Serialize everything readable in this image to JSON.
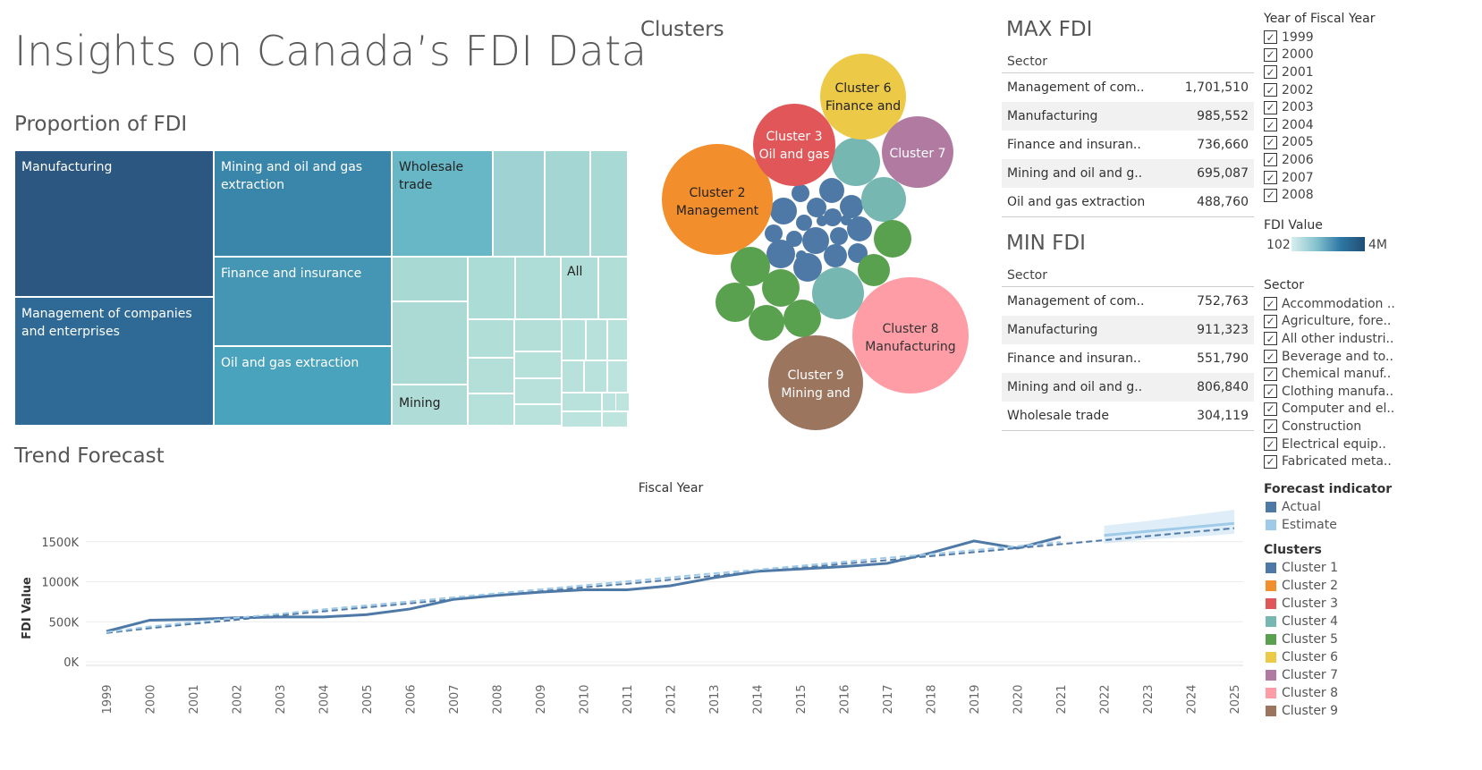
{
  "title": "Insights on Canada’s FDI Data",
  "sections": {
    "proportion": "Proportion of FDI",
    "clusters": "Clusters",
    "trend": "Trend Forecast"
  },
  "treemap": {
    "labels": {
      "manufacturing": "Manufacturing",
      "management": "Management of companies and enterprises",
      "mining_oil_gas": "Mining and oil and gas extraction",
      "finance": "Finance and insurance",
      "oil_gas": "Oil and gas extraction",
      "wholesale": "Wholesale trade",
      "all": "All",
      "mining": "Mining"
    }
  },
  "bubbles": {
    "cluster2": [
      "Cluster 2",
      "Management"
    ],
    "cluster3": [
      "Cluster 3",
      "Oil and gas"
    ],
    "cluster6": [
      "Cluster 6",
      "Finance and"
    ],
    "cluster7": [
      "Cluster 7"
    ],
    "cluster8": [
      "Cluster 8",
      "Manufacturing"
    ],
    "cluster9": [
      "Cluster 9",
      "Mining and"
    ]
  },
  "max_fdi": {
    "title": "MAX FDI",
    "header": "Sector",
    "rows": [
      {
        "sector": "Management of com..",
        "value": "1,701,510"
      },
      {
        "sector": "Manufacturing",
        "value": "985,552"
      },
      {
        "sector": "Finance and insuran..",
        "value": "736,660"
      },
      {
        "sector": "Mining and oil and g..",
        "value": "695,087"
      },
      {
        "sector": "Oil and gas extraction",
        "value": "488,760"
      }
    ]
  },
  "min_fdi": {
    "title": "MIN FDI",
    "header": "Sector",
    "rows": [
      {
        "sector": "Management of com..",
        "value": "752,763"
      },
      {
        "sector": "Manufacturing",
        "value": "911,323"
      },
      {
        "sector": "Finance and insuran..",
        "value": "551,790"
      },
      {
        "sector": "Mining and oil and g..",
        "value": "806,840"
      },
      {
        "sector": "Wholesale trade",
        "value": "304,119"
      }
    ]
  },
  "filters": {
    "year_title": "Year of Fiscal Year",
    "years": [
      "1999",
      "2000",
      "2001",
      "2002",
      "2003",
      "2004",
      "2005",
      "2006",
      "2007",
      "2008"
    ],
    "fdi_value_title": "FDI Value",
    "fdi_min": "102",
    "fdi_max": "4M",
    "sector_title": "Sector",
    "sectors": [
      "Accommodation ..",
      "Agriculture, fore..",
      "All other industri..",
      "Beverage and to..",
      "Chemical manuf..",
      "Clothing manufa..",
      "Computer and el..",
      "Construction",
      "Electrical equip..",
      "Fabricated meta.."
    ]
  },
  "legend": {
    "forecast_title": "Forecast indicator",
    "forecast": [
      {
        "label": "Actual",
        "color": "#4e79a7"
      },
      {
        "label": "Estimate",
        "color": "#a0cbe8"
      }
    ],
    "clusters_title": "Clusters",
    "clusters": [
      {
        "label": "Cluster 1",
        "color": "#4e79a7"
      },
      {
        "label": "Cluster 2",
        "color": "#f28e2b"
      },
      {
        "label": "Cluster 3",
        "color": "#e15759"
      },
      {
        "label": "Cluster 4",
        "color": "#76b7b2"
      },
      {
        "label": "Cluster 5",
        "color": "#59a14f"
      },
      {
        "label": "Cluster 6",
        "color": "#edc948"
      },
      {
        "label": "Cluster 7",
        "color": "#b07aa1"
      },
      {
        "label": "Cluster 8",
        "color": "#ff9da7"
      },
      {
        "label": "Cluster 9",
        "color": "#9c755f"
      }
    ]
  },
  "chart_data": {
    "type": "line",
    "title": "Fiscal Year",
    "xlabel": "Fiscal Year",
    "ylabel": "FDI Value",
    "yticks": [
      "0K",
      "500K",
      "1000K",
      "1500K"
    ],
    "ylim": [
      0,
      1900
    ],
    "x": [
      "1999",
      "2000",
      "2001",
      "2002",
      "2003",
      "2004",
      "2005",
      "2006",
      "2007",
      "2008",
      "2009",
      "2010",
      "2011",
      "2012",
      "2013",
      "2014",
      "2015",
      "2016",
      "2017",
      "2018",
      "2019",
      "2020",
      "2021",
      "2022",
      "2023",
      "2024",
      "2025"
    ],
    "series": [
      {
        "name": "Actual",
        "color": "#4e79a7",
        "values": [
          380,
          520,
          530,
          550,
          560,
          560,
          590,
          660,
          780,
          830,
          870,
          900,
          900,
          950,
          1050,
          1130,
          1160,
          1190,
          1230,
          1360,
          1510,
          1420,
          1560,
          null,
          null,
          null,
          null
        ]
      },
      {
        "name": "Trend (Actual)",
        "color": "#4e79a7",
        "dash": true,
        "values": [
          360,
          420,
          475,
          525,
          580,
          630,
          680,
          730,
          780,
          830,
          880,
          930,
          975,
          1025,
          1075,
          1125,
          1175,
          1225,
          1270,
          1320,
          1370,
          1420,
          1470,
          1520,
          1570,
          1620,
          1670
        ]
      },
      {
        "name": "Trend (Estimate)",
        "color": "#a0cbe8",
        "dash": true,
        "values": [
          370,
          440,
          495,
          550,
          600,
          655,
          705,
          755,
          805,
          855,
          905,
          955,
          1005,
          1055,
          1105,
          1150,
          1200,
          1250,
          1300,
          1345,
          1395,
          1445,
          1495,
          null,
          null,
          null,
          null
        ]
      },
      {
        "name": "Estimate",
        "color": "#a0cbe8",
        "values": [
          null,
          null,
          null,
          null,
          null,
          null,
          null,
          null,
          null,
          null,
          null,
          null,
          null,
          null,
          null,
          null,
          null,
          null,
          null,
          null,
          null,
          null,
          null,
          1580,
          1630,
          1680,
          1730
        ]
      }
    ],
    "band": {
      "x": [
        "2022",
        "2023",
        "2024",
        "2025"
      ],
      "lower": [
        1480,
        1530,
        1560,
        1600
      ],
      "upper": [
        1700,
        1760,
        1830,
        1900
      ]
    }
  }
}
